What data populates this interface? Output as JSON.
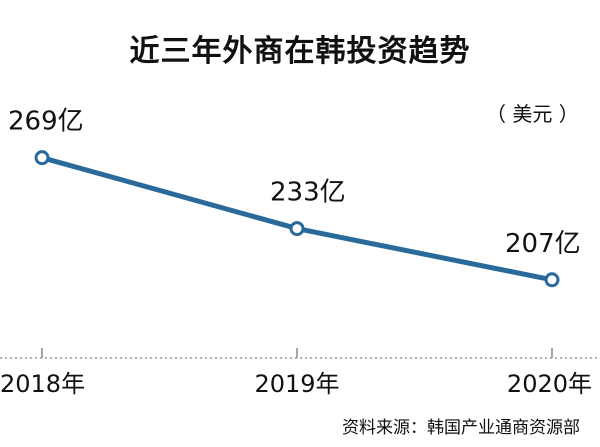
{
  "chart_data": {
    "type": "line",
    "title": "近三年外商在韩投资趋势",
    "unit": "（ 美元 ）",
    "categories": [
      "2018年",
      "2019年",
      "2020年"
    ],
    "values": [
      269,
      233,
      207
    ],
    "data_labels": [
      "269亿",
      "233亿",
      "207亿"
    ],
    "ylim": [
      180,
      280
    ],
    "grid": false,
    "line_color": "#2a6a9a",
    "source": "资料来源：韩国产业通商资源部"
  }
}
